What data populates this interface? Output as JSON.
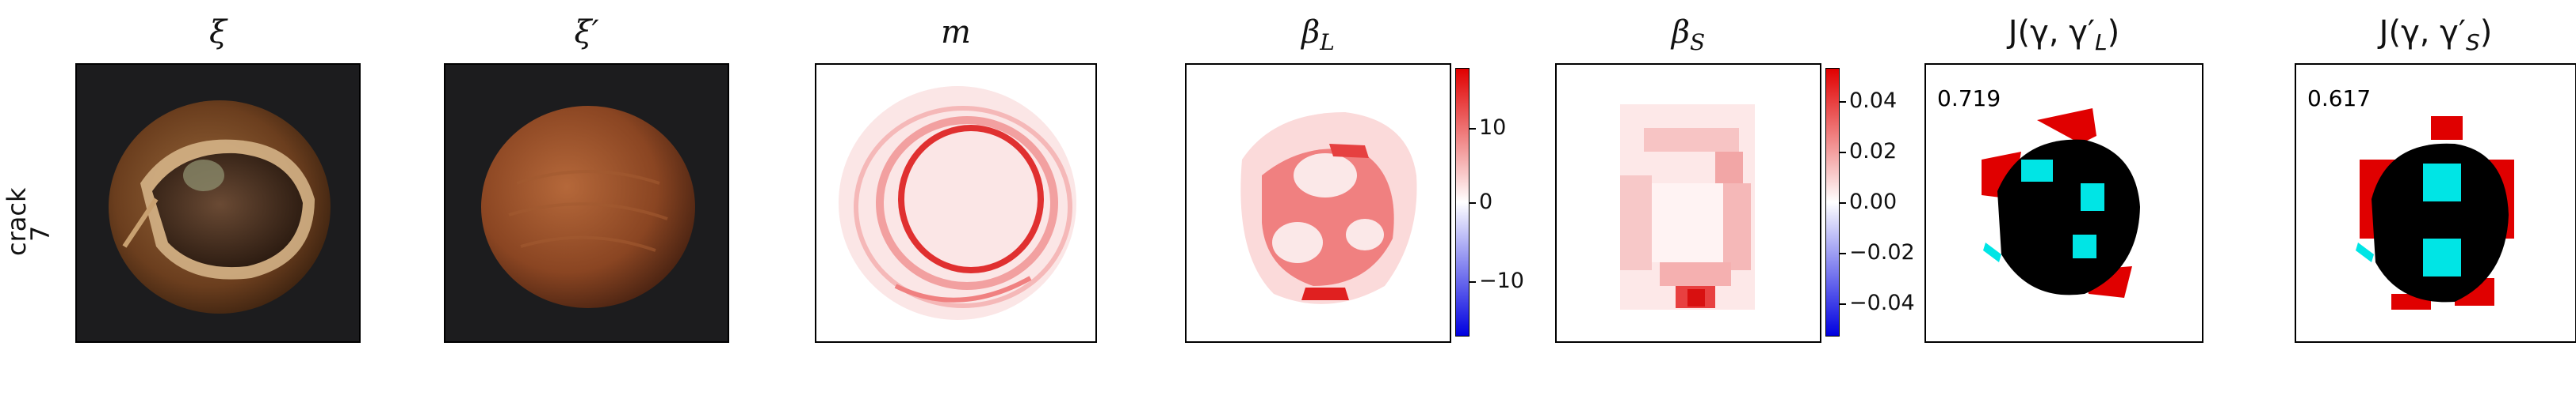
{
  "row_label": {
    "line1": "crack",
    "line2": "7"
  },
  "titles": {
    "xi": "ξ",
    "xi_prime": "ξ′",
    "m": "m",
    "beta_l": "β",
    "beta_l_sub": "L",
    "beta_s": "β",
    "beta_s_sub": "S",
    "j_l": "J(γ, γ′",
    "j_l_sub": "L",
    "j_l_close": ")",
    "j_s": "J(γ, γ′",
    "j_s_sub": "S",
    "j_s_close": ")"
  },
  "scores": {
    "j_l": "0.719",
    "j_s": "0.617"
  },
  "colorbar_l": {
    "ticks": [
      "10",
      "0",
      "−10"
    ]
  },
  "colorbar_s": {
    "ticks": [
      "0.04",
      "0.02",
      "0.00",
      "−0.02",
      "−0.04"
    ]
  },
  "colors": {
    "positive": "#e00000",
    "negative": "#0000e0",
    "mask": "#000000",
    "overlap": "#00e5e5",
    "nut_shell": "#7a4a26"
  }
}
